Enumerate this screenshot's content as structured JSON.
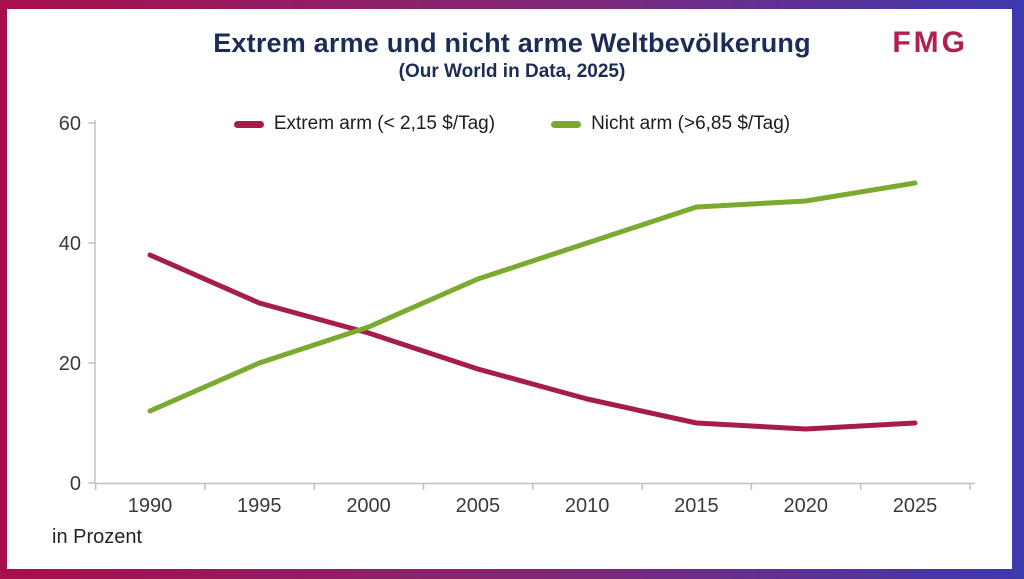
{
  "header": {
    "logo": "FMG"
  },
  "colors": {
    "title": "#1b2c55",
    "logo": "#b02050",
    "axis": "#bfbfbf",
    "tick_text": "#3a3a3a",
    "legend_text": "#1c1c1c",
    "border_gradient_left": "#a80f4c",
    "border_gradient_mid": "#7f2878",
    "border_gradient_right": "#3d39ae"
  },
  "chart_data": {
    "type": "line",
    "title": "Extrem arme und nicht arme Weltbevölkerung",
    "subtitle": "(Our World in Data, 2025)",
    "categories": [
      "1990",
      "1995",
      "2000",
      "2005",
      "2010",
      "2015",
      "2020",
      "2025"
    ],
    "series": [
      {
        "name": "Extrem arm (< 2,15 $/Tag)",
        "color": "#a51c4d",
        "values": [
          38,
          30,
          25,
          19,
          14,
          10,
          9,
          10
        ]
      },
      {
        "name": "Nicht arm (>6,85 $/Tag)",
        "color": "#7ca92f",
        "values": [
          12,
          20,
          26,
          34,
          40,
          46,
          47,
          50
        ]
      }
    ],
    "xlabel": "",
    "ylabel": "in Prozent",
    "ylim": [
      0,
      60
    ],
    "yticks": [
      0,
      20,
      40,
      60
    ],
    "grid": false,
    "legend_position": "top-center"
  }
}
